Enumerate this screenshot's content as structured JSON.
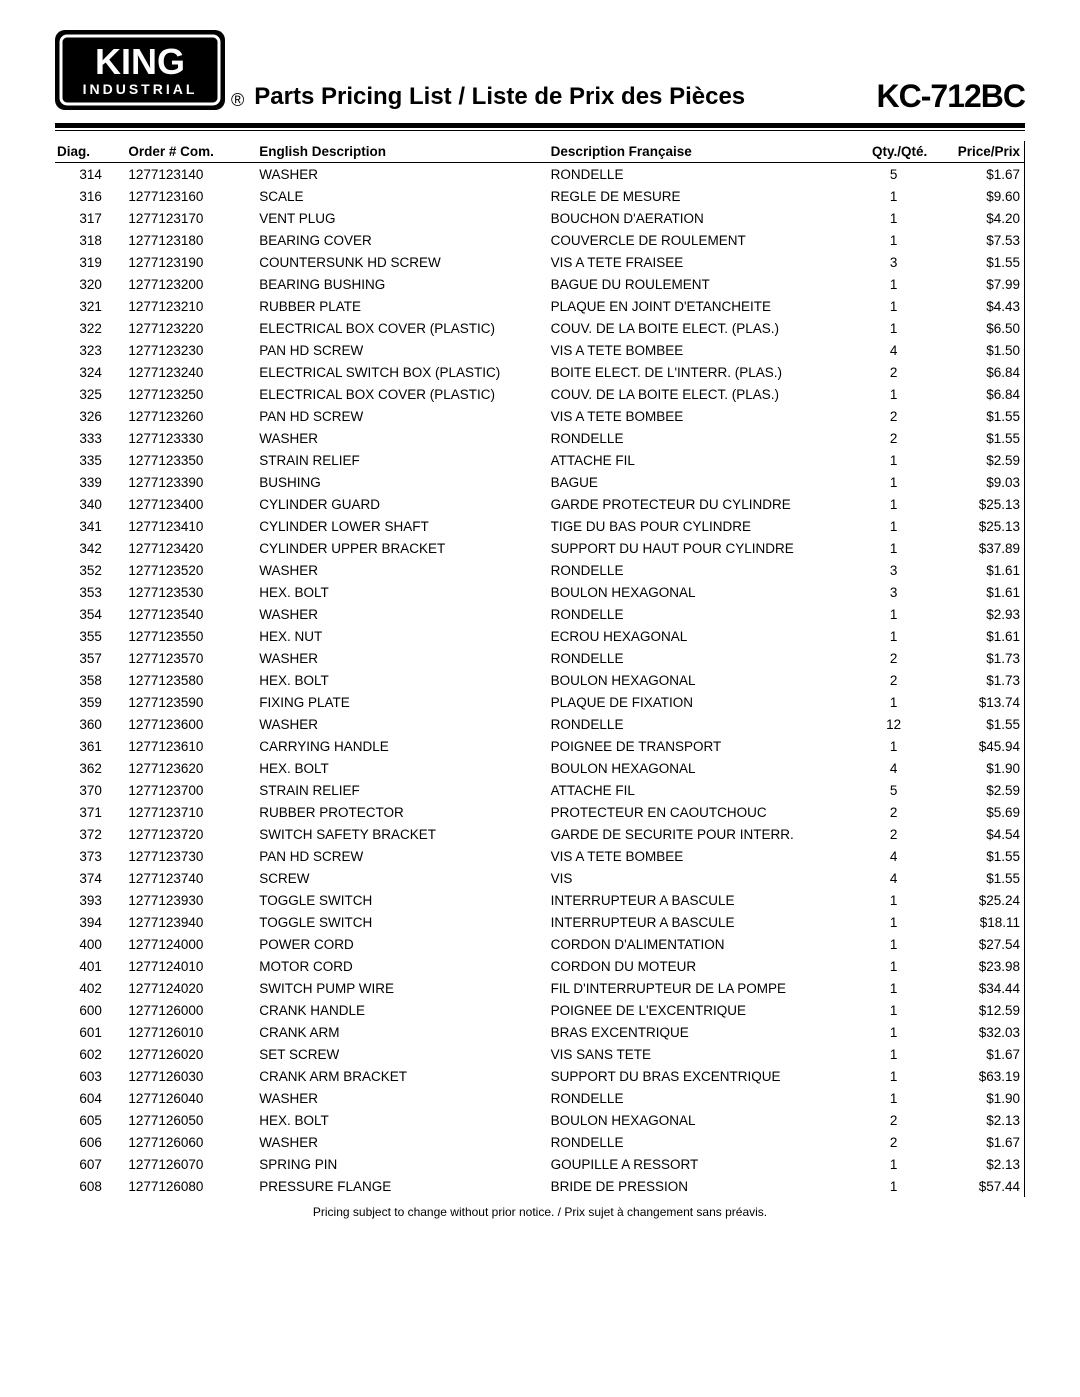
{
  "logo": {
    "brand": "KING",
    "sub": "INDUSTRIAL",
    "bg": "#000000",
    "fg": "#ffffff"
  },
  "header": {
    "registered": "®",
    "title": "Parts Pricing List / Liste de Prix des Pièces",
    "model": "KC-712BC"
  },
  "table": {
    "columns": {
      "diag": "Diag.",
      "order": "Order # Com.",
      "en": "English Description",
      "fr": "Description Française",
      "qty": "Qty./Qté.",
      "price": "Price/Prix"
    },
    "rows": [
      {
        "diag": "314",
        "order": "1277123140",
        "en": "WASHER",
        "fr": "RONDELLE",
        "qty": "5",
        "price": "$1.67"
      },
      {
        "diag": "316",
        "order": "1277123160",
        "en": "SCALE",
        "fr": "REGLE DE MESURE",
        "qty": "1",
        "price": "$9.60"
      },
      {
        "diag": "317",
        "order": "1277123170",
        "en": "VENT PLUG",
        "fr": "BOUCHON D'AERATION",
        "qty": "1",
        "price": "$4.20"
      },
      {
        "diag": "318",
        "order": "1277123180",
        "en": "BEARING COVER",
        "fr": "COUVERCLE DE ROULEMENT",
        "qty": "1",
        "price": "$7.53"
      },
      {
        "diag": "319",
        "order": "1277123190",
        "en": "COUNTERSUNK HD SCREW",
        "fr": "VIS A TETE FRAISEE",
        "qty": "3",
        "price": "$1.55"
      },
      {
        "diag": "320",
        "order": "1277123200",
        "en": "BEARING BUSHING",
        "fr": "BAGUE DU ROULEMENT",
        "qty": "1",
        "price": "$7.99"
      },
      {
        "diag": "321",
        "order": "1277123210",
        "en": "RUBBER PLATE",
        "fr": "PLAQUE EN JOINT D'ETANCHEITE",
        "qty": "1",
        "price": "$4.43"
      },
      {
        "diag": "322",
        "order": "1277123220",
        "en": "ELECTRICAL BOX COVER (PLASTIC)",
        "fr": "COUV. DE LA BOITE ELECT. (PLAS.)",
        "qty": "1",
        "price": "$6.50"
      },
      {
        "diag": "323",
        "order": "1277123230",
        "en": "PAN HD SCREW",
        "fr": "VIS A TETE BOMBEE",
        "qty": "4",
        "price": "$1.50"
      },
      {
        "diag": "324",
        "order": "1277123240",
        "en": "ELECTRICAL SWITCH BOX (PLASTIC)",
        "fr": "BOITE ELECT. DE L'INTERR. (PLAS.)",
        "qty": "2",
        "price": "$6.84"
      },
      {
        "diag": "325",
        "order": "1277123250",
        "en": "ELECTRICAL BOX COVER (PLASTIC)",
        "fr": "COUV. DE LA BOITE ELECT. (PLAS.)",
        "qty": "1",
        "price": "$6.84"
      },
      {
        "diag": "326",
        "order": "1277123260",
        "en": "PAN HD SCREW",
        "fr": "VIS A TETE BOMBEE",
        "qty": "2",
        "price": "$1.55"
      },
      {
        "diag": "333",
        "order": "1277123330",
        "en": "WASHER",
        "fr": "RONDELLE",
        "qty": "2",
        "price": "$1.55"
      },
      {
        "diag": "335",
        "order": "1277123350",
        "en": "STRAIN RELIEF",
        "fr": "ATTACHE FIL",
        "qty": "1",
        "price": "$2.59"
      },
      {
        "diag": "339",
        "order": "1277123390",
        "en": "BUSHING",
        "fr": "BAGUE",
        "qty": "1",
        "price": "$9.03"
      },
      {
        "diag": "340",
        "order": "1277123400",
        "en": "CYLINDER GUARD",
        "fr": "GARDE PROTECTEUR DU CYLINDRE",
        "qty": "1",
        "price": "$25.13"
      },
      {
        "diag": "341",
        "order": "1277123410",
        "en": "CYLINDER LOWER SHAFT",
        "fr": "TIGE DU BAS POUR CYLINDRE",
        "qty": "1",
        "price": "$25.13"
      },
      {
        "diag": "342",
        "order": "1277123420",
        "en": "CYLINDER UPPER BRACKET",
        "fr": "SUPPORT DU HAUT POUR CYLINDRE",
        "qty": "1",
        "price": "$37.89"
      },
      {
        "diag": "352",
        "order": "1277123520",
        "en": "WASHER",
        "fr": "RONDELLE",
        "qty": "3",
        "price": "$1.61"
      },
      {
        "diag": "353",
        "order": "1277123530",
        "en": "HEX. BOLT",
        "fr": "BOULON HEXAGONAL",
        "qty": "3",
        "price": "$1.61"
      },
      {
        "diag": "354",
        "order": "1277123540",
        "en": "WASHER",
        "fr": "RONDELLE",
        "qty": "1",
        "price": "$2.93"
      },
      {
        "diag": "355",
        "order": "1277123550",
        "en": "HEX. NUT",
        "fr": "ECROU HEXAGONAL",
        "qty": "1",
        "price": "$1.61"
      },
      {
        "diag": "357",
        "order": "1277123570",
        "en": "WASHER",
        "fr": "RONDELLE",
        "qty": "2",
        "price": "$1.73"
      },
      {
        "diag": "358",
        "order": "1277123580",
        "en": "HEX. BOLT",
        "fr": "BOULON HEXAGONAL",
        "qty": "2",
        "price": "$1.73"
      },
      {
        "diag": "359",
        "order": "1277123590",
        "en": "FIXING PLATE",
        "fr": "PLAQUE DE FIXATION",
        "qty": "1",
        "price": "$13.74"
      },
      {
        "diag": "360",
        "order": "1277123600",
        "en": "WASHER",
        "fr": "RONDELLE",
        "qty": "12",
        "price": "$1.55"
      },
      {
        "diag": "361",
        "order": "1277123610",
        "en": "CARRYING HANDLE",
        "fr": "POIGNEE DE TRANSPORT",
        "qty": "1",
        "price": "$45.94"
      },
      {
        "diag": "362",
        "order": "1277123620",
        "en": "HEX. BOLT",
        "fr": "BOULON HEXAGONAL",
        "qty": "4",
        "price": "$1.90"
      },
      {
        "diag": "370",
        "order": "1277123700",
        "en": "STRAIN RELIEF",
        "fr": "ATTACHE FIL",
        "qty": "5",
        "price": "$2.59"
      },
      {
        "diag": "371",
        "order": "1277123710",
        "en": "RUBBER PROTECTOR",
        "fr": "PROTECTEUR EN CAOUTCHOUC",
        "qty": "2",
        "price": "$5.69"
      },
      {
        "diag": "372",
        "order": "1277123720",
        "en": "SWITCH SAFETY BRACKET",
        "fr": "GARDE DE SECURITE POUR INTERR.",
        "qty": "2",
        "price": "$4.54"
      },
      {
        "diag": "373",
        "order": "1277123730",
        "en": "PAN HD SCREW",
        "fr": "VIS A TETE BOMBEE",
        "qty": "4",
        "price": "$1.55"
      },
      {
        "diag": "374",
        "order": "1277123740",
        "en": "SCREW",
        "fr": "VIS",
        "qty": "4",
        "price": "$1.55"
      },
      {
        "diag": "393",
        "order": "1277123930",
        "en": "TOGGLE SWITCH",
        "fr": "INTERRUPTEUR A BASCULE",
        "qty": "1",
        "price": "$25.24"
      },
      {
        "diag": "394",
        "order": "1277123940",
        "en": "TOGGLE SWITCH",
        "fr": "INTERRUPTEUR A BASCULE",
        "qty": "1",
        "price": "$18.11"
      },
      {
        "diag": "400",
        "order": "1277124000",
        "en": "POWER CORD",
        "fr": "CORDON D'ALIMENTATION",
        "qty": "1",
        "price": "$27.54"
      },
      {
        "diag": "401",
        "order": "1277124010",
        "en": "MOTOR CORD",
        "fr": "CORDON DU MOTEUR",
        "qty": "1",
        "price": "$23.98"
      },
      {
        "diag": "402",
        "order": "1277124020",
        "en": "SWITCH PUMP WIRE",
        "fr": "FIL D'INTERRUPTEUR DE LA POMPE",
        "qty": "1",
        "price": "$34.44"
      },
      {
        "diag": "600",
        "order": "1277126000",
        "en": "CRANK HANDLE",
        "fr": "POIGNEE DE L'EXCENTRIQUE",
        "qty": "1",
        "price": "$12.59"
      },
      {
        "diag": "601",
        "order": "1277126010",
        "en": "CRANK ARM",
        "fr": "BRAS EXCENTRIQUE",
        "qty": "1",
        "price": "$32.03"
      },
      {
        "diag": "602",
        "order": "1277126020",
        "en": "SET SCREW",
        "fr": "VIS SANS TETE",
        "qty": "1",
        "price": "$1.67"
      },
      {
        "diag": "603",
        "order": "1277126030",
        "en": "CRANK ARM BRACKET",
        "fr": "SUPPORT DU BRAS EXCENTRIQUE",
        "qty": "1",
        "price": "$63.19"
      },
      {
        "diag": "604",
        "order": "1277126040",
        "en": "WASHER",
        "fr": "RONDELLE",
        "qty": "1",
        "price": "$1.90"
      },
      {
        "diag": "605",
        "order": "1277126050",
        "en": "HEX. BOLT",
        "fr": "BOULON HEXAGONAL",
        "qty": "2",
        "price": "$2.13"
      },
      {
        "diag": "606",
        "order": "1277126060",
        "en": "WASHER",
        "fr": "RONDELLE",
        "qty": "2",
        "price": "$1.67"
      },
      {
        "diag": "607",
        "order": "1277126070",
        "en": "SPRING PIN",
        "fr": "GOUPILLE A RESSORT",
        "qty": "1",
        "price": "$2.13"
      },
      {
        "diag": "608",
        "order": "1277126080",
        "en": "PRESSURE FLANGE",
        "fr": "BRIDE DE PRESSION",
        "qty": "1",
        "price": "$57.44"
      }
    ]
  },
  "footer": "Pricing subject to change without prior notice. / Prix sujet à changement sans préavis."
}
